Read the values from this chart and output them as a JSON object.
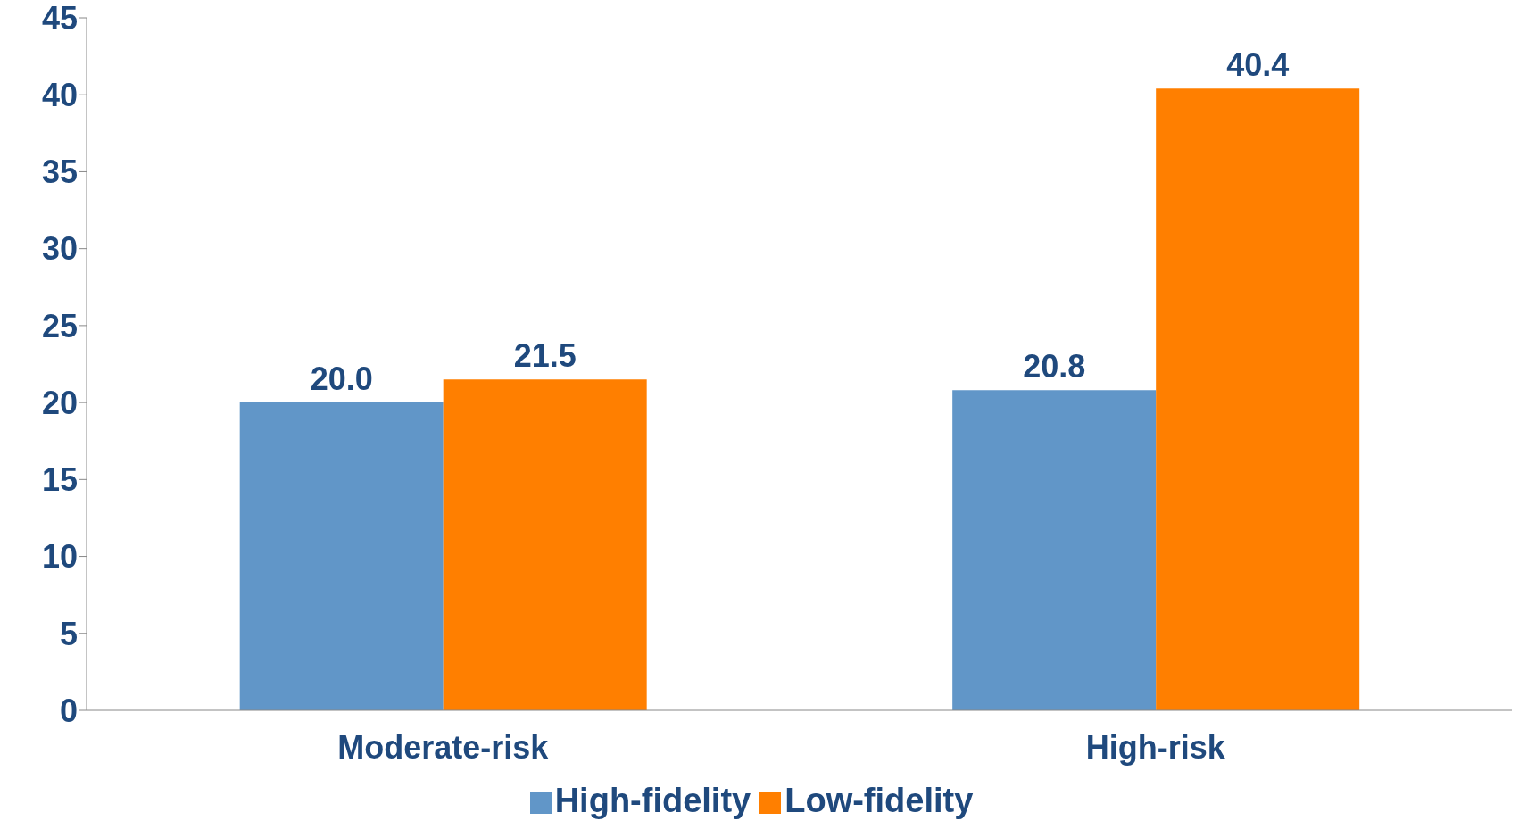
{
  "chart_data": {
    "type": "bar",
    "categories": [
      "Moderate-risk",
      "High-risk"
    ],
    "series": [
      {
        "name": "High-fidelity",
        "color": "#6196c8",
        "values": [
          20.0,
          20.8
        ],
        "value_labels": [
          "20.0",
          "20.8"
        ]
      },
      {
        "name": "Low-fidelity",
        "color": "#ff7f00",
        "values": [
          21.5,
          40.4
        ],
        "value_labels": [
          "21.5",
          "40.4"
        ]
      }
    ],
    "ylim": [
      0,
      45
    ],
    "yticks": [
      0,
      5,
      10,
      15,
      20,
      25,
      30,
      35,
      40,
      45
    ],
    "grid": false,
    "legend": "bottom"
  }
}
